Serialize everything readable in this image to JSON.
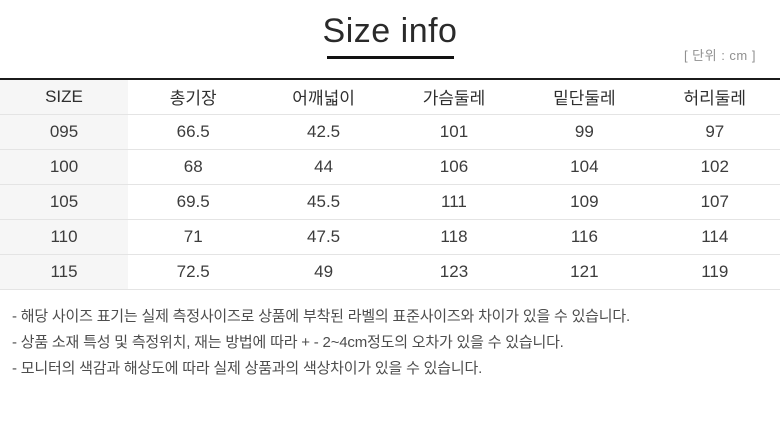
{
  "header": {
    "title": "Size info",
    "unit_label": "[ 단위 : cm ]"
  },
  "table": {
    "columns": [
      "SIZE",
      "총기장",
      "어깨넓이",
      "가슴둘레",
      "밑단둘레",
      "허리둘레"
    ],
    "rows": [
      {
        "size": "095",
        "values": [
          "66.5",
          "42.5",
          "101",
          "99",
          "97"
        ]
      },
      {
        "size": "100",
        "values": [
          "68",
          "44",
          "106",
          "104",
          "102"
        ]
      },
      {
        "size": "105",
        "values": [
          "69.5",
          "45.5",
          "111",
          "109",
          "107"
        ]
      },
      {
        "size": "110",
        "values": [
          "71",
          "47.5",
          "118",
          "116",
          "114"
        ]
      },
      {
        "size": "115",
        "values": [
          "72.5",
          "49",
          "123",
          "121",
          "119"
        ]
      }
    ]
  },
  "notes": [
    "- 해당 사이즈 표기는 실제 측정사이즈로 상품에 부착된 라벨의 표준사이즈와 차이가 있을 수 있습니다.",
    "- 상품 소재 특성 및 측정위치, 재는 방법에 따라 + - 2~4cm정도의 오차가 있을 수 있습니다.",
    "- 모니터의 색감과 해상도에 따라 실제 상품과의 색상차이가 있을 수 있습니다."
  ],
  "colors": {
    "table_top_border": "#1b1b1b",
    "row_divider": "#e4e4e4",
    "size_column_bg": "#f6f6f6",
    "title_text": "#2a2a2a",
    "cell_text": "#3c3c3c",
    "unit_text": "#909090"
  }
}
